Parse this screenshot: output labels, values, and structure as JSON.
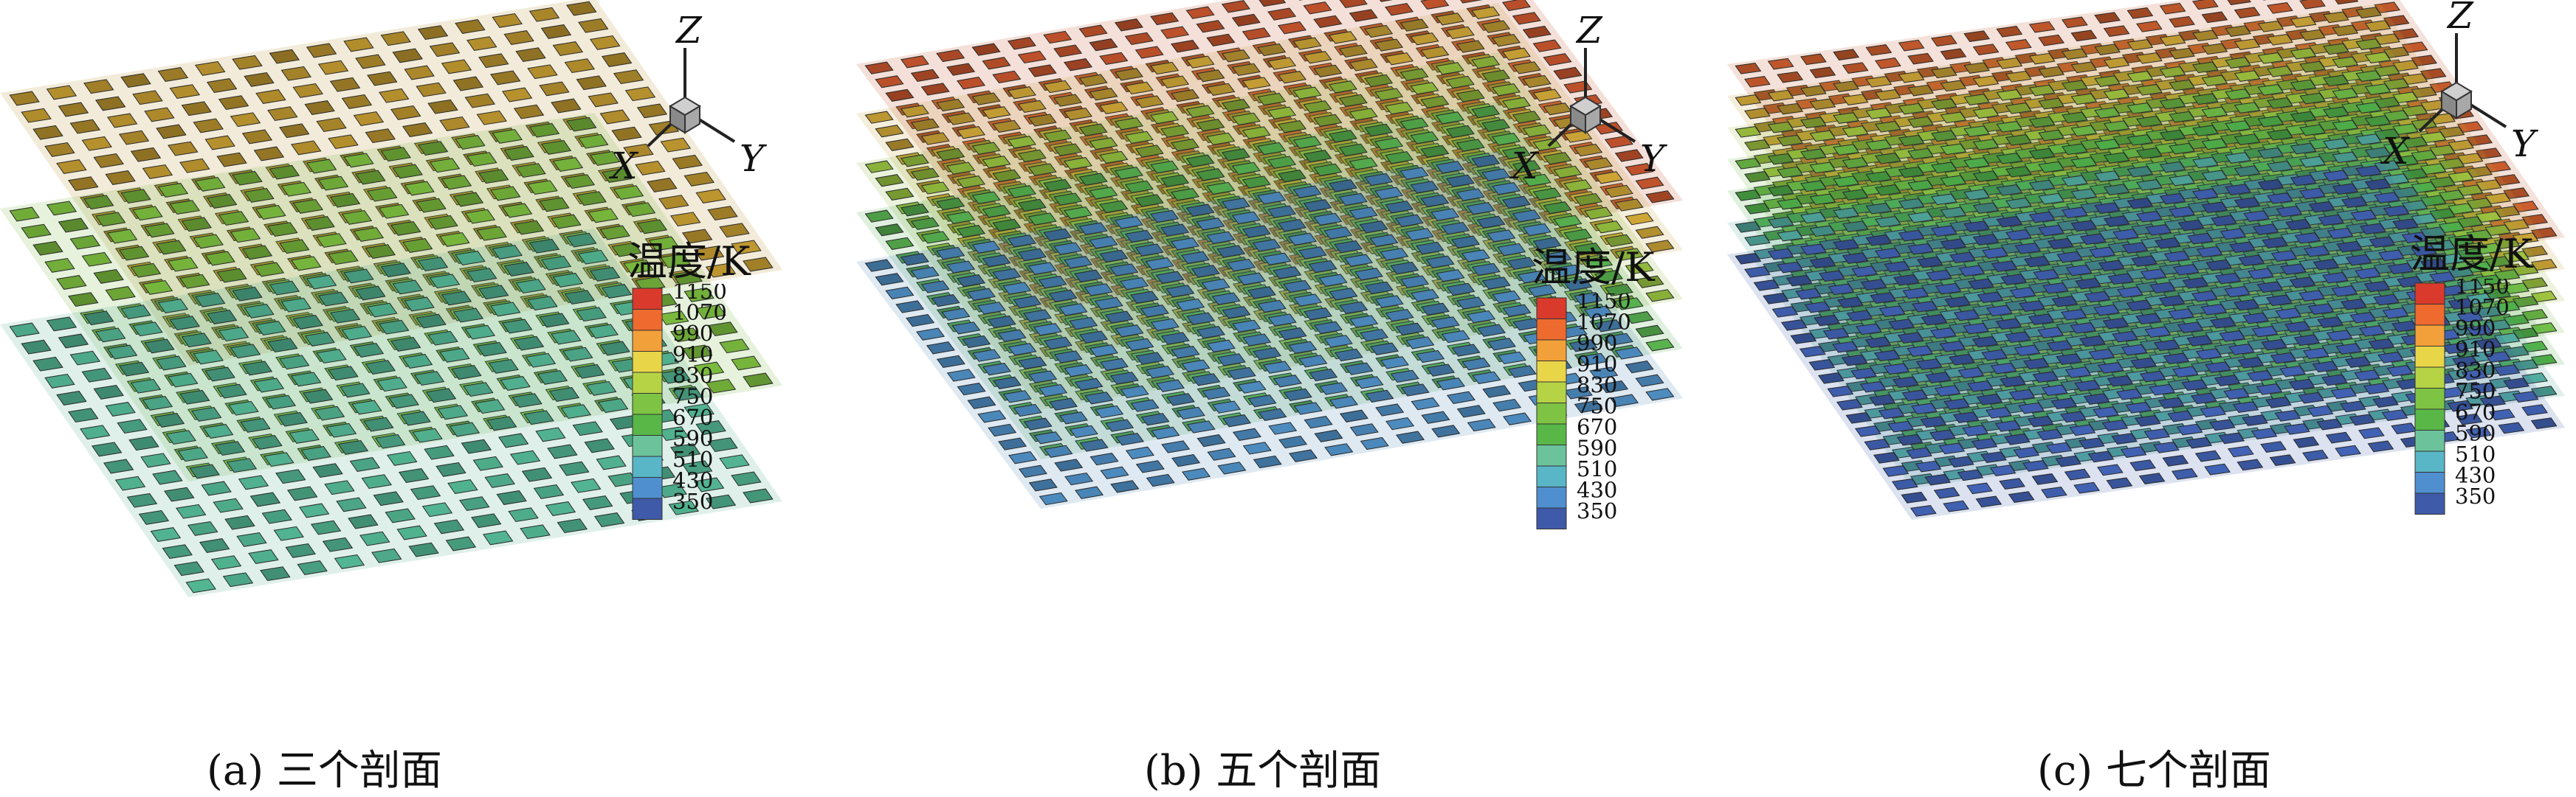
{
  "axes": {
    "x": "X",
    "y": "Y",
    "z": "Z"
  },
  "colorbar": {
    "title": "温度/K",
    "levels": [
      "1150",
      "1070",
      "990",
      "910",
      "830",
      "750",
      "670",
      "590",
      "510",
      "430",
      "350"
    ],
    "colors": [
      "#d93a2b",
      "#ee6a2e",
      "#f2a03a",
      "#e9d548",
      "#b5d345",
      "#7ec343",
      "#58b747",
      "#6cc39b",
      "#58b6c6",
      "#4f8fcf",
      "#3e5aa8"
    ]
  },
  "panels": [
    {
      "id": "a",
      "label": "(a)",
      "caption": "三个剖面",
      "sections": 3,
      "layer_colors": [
        "#b8922e",
        "#77b63c",
        "#4fae8d"
      ]
    },
    {
      "id": "b",
      "label": "(b)",
      "caption": "五个剖面",
      "sections": 5,
      "layer_colors": [
        "#c2532c",
        "#c7a035",
        "#8fb83c",
        "#55ad4d",
        "#4a86b8"
      ]
    },
    {
      "id": "c",
      "label": "(c)",
      "caption": "七个剖面",
      "sections": 7,
      "layer_colors": [
        "#c45a2c",
        "#c7a035",
        "#9bbd3d",
        "#6db845",
        "#4fb04a",
        "#4fa59a",
        "#3f5fae"
      ]
    }
  ]
}
